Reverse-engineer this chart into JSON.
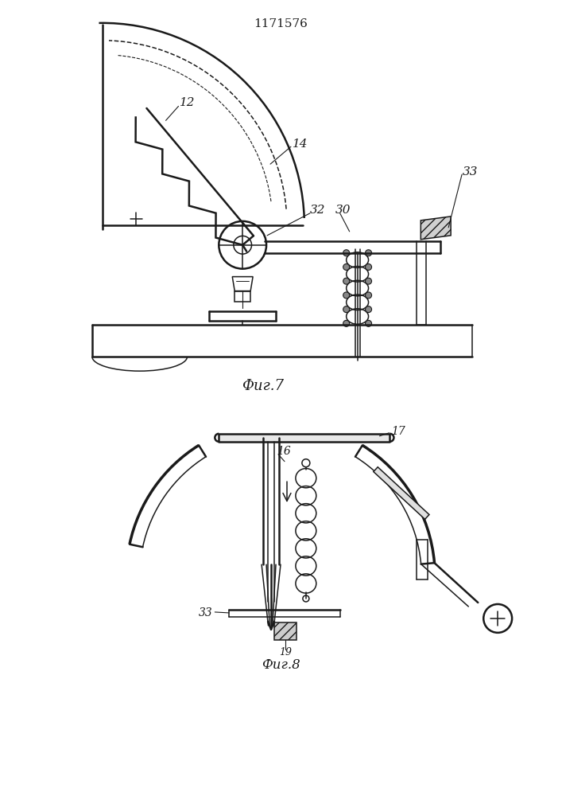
{
  "title": "1171576",
  "fig7_label": "Фиг.7",
  "fig8_label": "Фиг.8",
  "bg_color": "#ffffff",
  "line_color": "#1a1a1a"
}
